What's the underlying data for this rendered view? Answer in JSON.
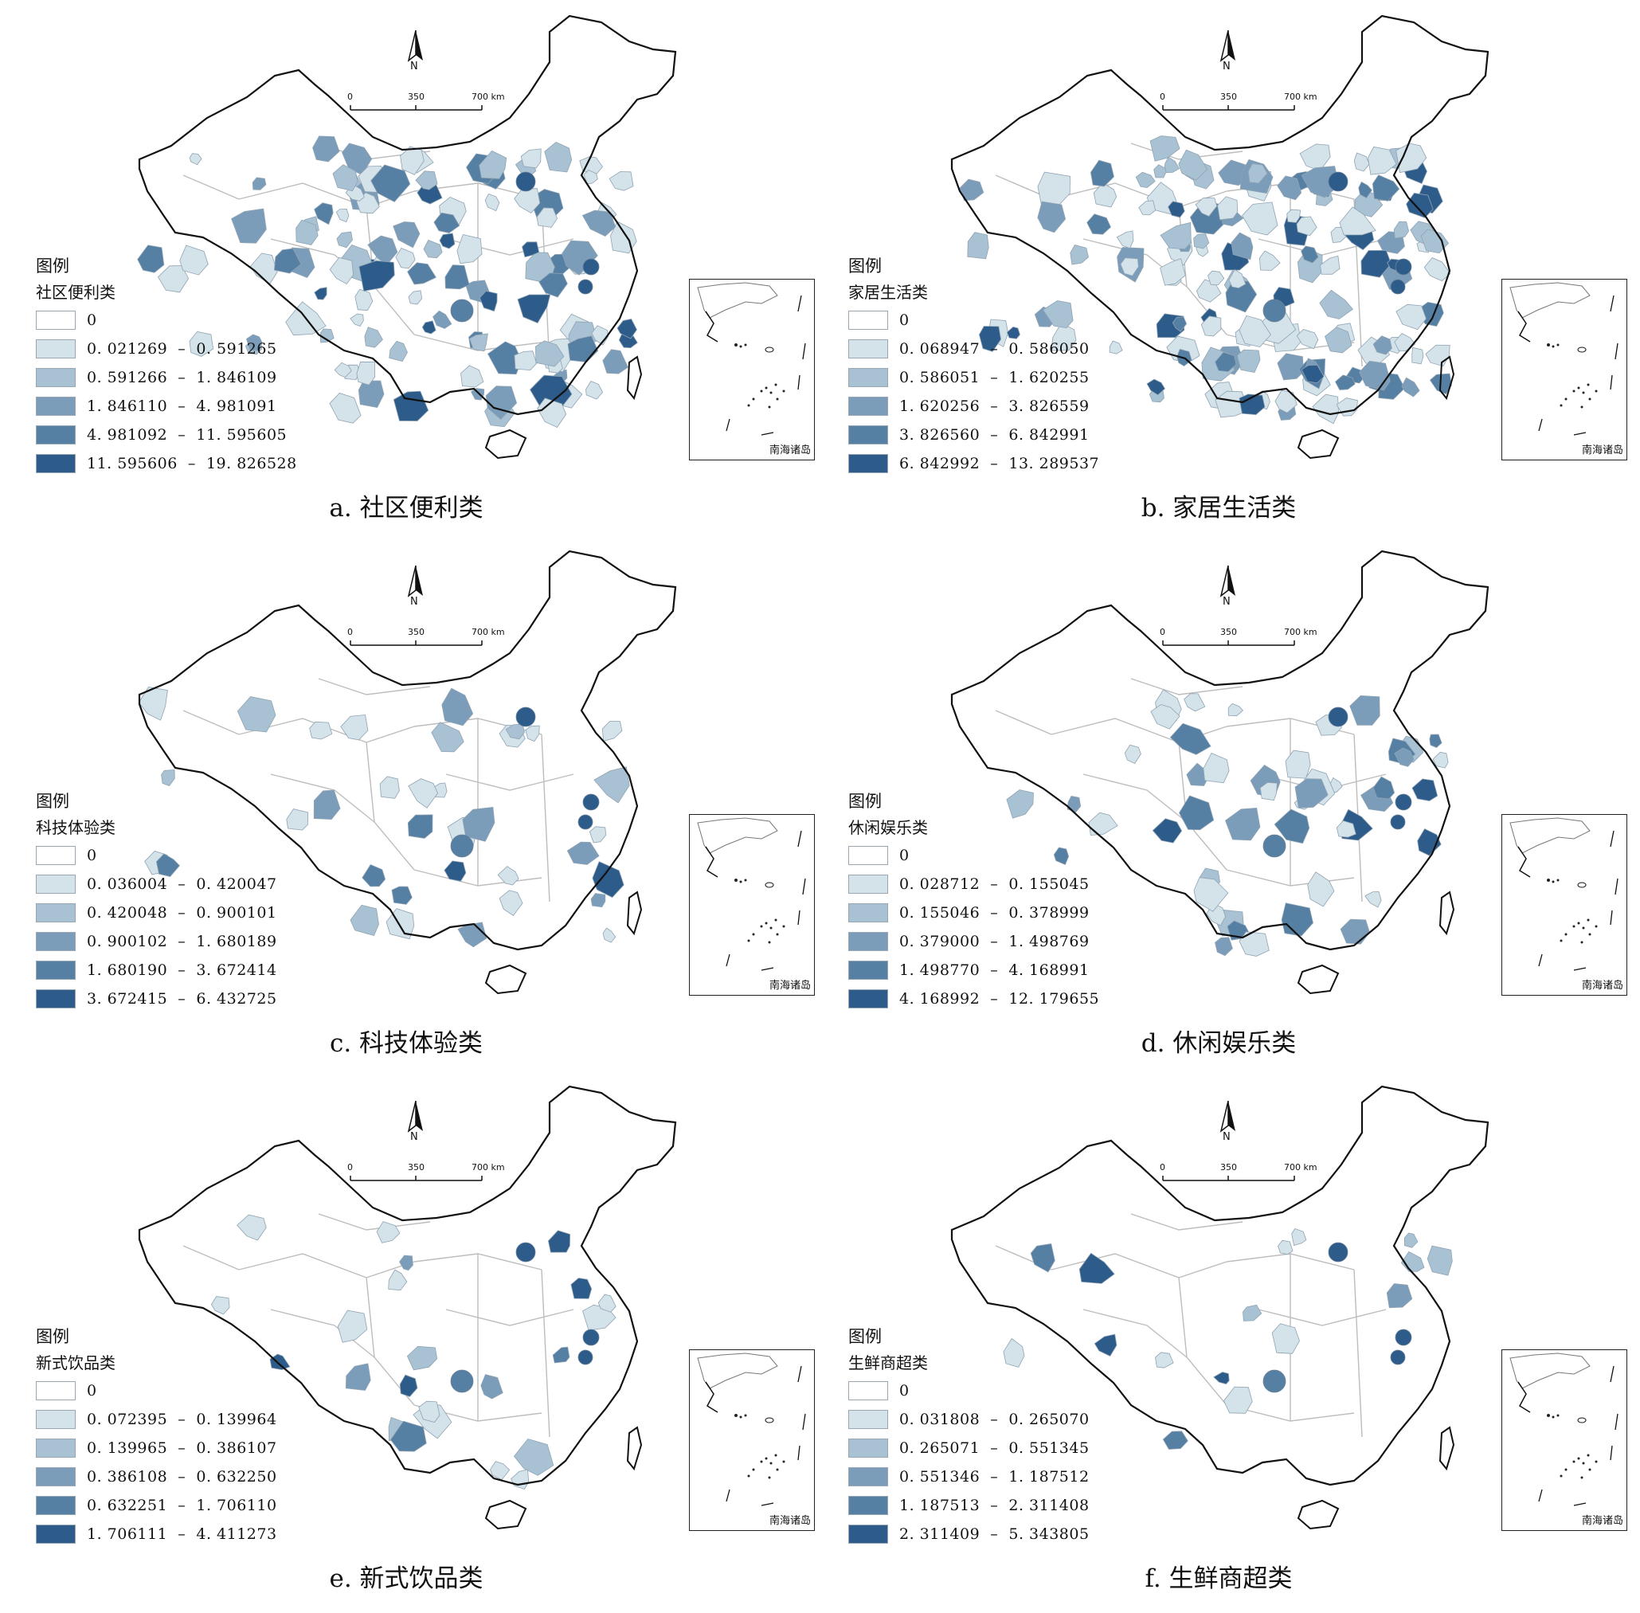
{
  "map_common": {
    "north_label": "N",
    "scale_labels": [
      "0",
      "350",
      "700 km"
    ],
    "inset_label": "南海诸岛",
    "legend_title": "图例",
    "colors": [
      "#ffffff",
      "#d4e3ea",
      "#a8c2d4",
      "#7c9dba",
      "#557fa3",
      "#2e5c8a"
    ]
  },
  "panels": [
    {
      "id": "a",
      "legend_subtitle": "社区便利类",
      "caption": "a. 社区便利类",
      "ranges": [
        "0",
        "0. 021269  –  0. 591265",
        "0. 591266  –  1. 846109",
        "1. 846110  –  4. 981091",
        "4. 981092  –  11. 595605",
        "11. 595606  –  19. 826528"
      ],
      "coverage": "high"
    },
    {
      "id": "b",
      "legend_subtitle": "家居生活类",
      "caption": "b. 家居生活类",
      "ranges": [
        "0",
        "0. 068947  –  0. 586050",
        "0. 586051  –  1. 620255",
        "1. 620256  –  3. 826559",
        "3. 826560  –  6. 842991",
        "6. 842992  –  13. 289537"
      ],
      "coverage": "very-high"
    },
    {
      "id": "c",
      "legend_subtitle": "科技体验类",
      "caption": "c. 科技体验类",
      "ranges": [
        "0",
        "0. 036004  –  0. 420047",
        "0. 420048  –  0. 900101",
        "0. 900102  –  1. 680189",
        "1. 680190  –  3. 672414",
        "3. 672415  –  6. 432725"
      ],
      "coverage": "medium"
    },
    {
      "id": "d",
      "legend_subtitle": "休闲娱乐类",
      "caption": "d. 休闲娱乐类",
      "ranges": [
        "0",
        "0. 028712  –  0. 155045",
        "0. 155046  –  0. 378999",
        "0. 379000  –  1. 498769",
        "1. 498770  –  4. 168991",
        "4. 168992  –  12. 179655"
      ],
      "coverage": "medium"
    },
    {
      "id": "e",
      "legend_subtitle": "新式饮品类",
      "caption": "e. 新式饮品类",
      "ranges": [
        "0",
        "0. 072395  –  0. 139964",
        "0. 139965  –  0. 386107",
        "0. 386108  –  0. 632250",
        "0. 632251  –  1. 706110",
        "1. 706111  –  4. 411273"
      ],
      "coverage": "low"
    },
    {
      "id": "f",
      "legend_subtitle": "生鲜商超类",
      "caption": "f. 生鲜商超类",
      "ranges": [
        "0",
        "0. 031808  –  0. 265070",
        "0. 265071  –  0. 551345",
        "0. 551346  –  1. 187512",
        "1. 187513  –  2. 311408",
        "2. 311409  –  5. 343805"
      ],
      "coverage": "low"
    }
  ]
}
